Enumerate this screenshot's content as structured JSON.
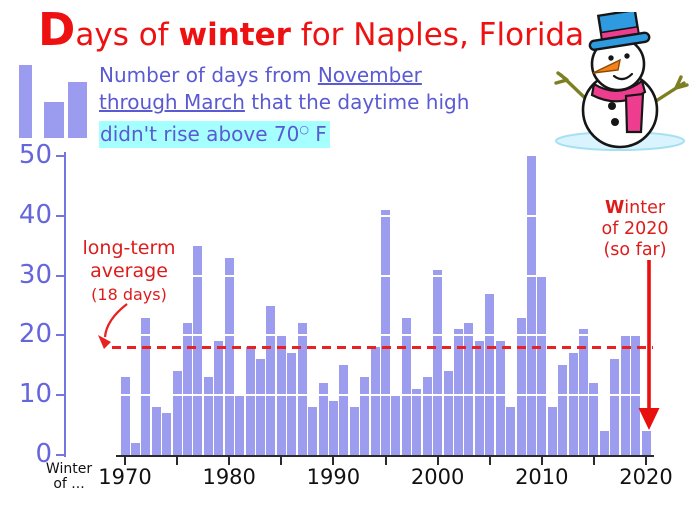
{
  "title": {
    "lead": "D",
    "part1": "ays of ",
    "part2": "winter",
    "part3": " for Naples, Florida"
  },
  "subtitle": {
    "line1_pre": "Number of days from ",
    "line1_underlined": "November",
    "line2_underlined": "through March",
    "line2_post": " that the daytime high",
    "line3_pre": "didn't rise above 70",
    "line3_degree": "○",
    "line3_post": " F"
  },
  "annotations": {
    "average": {
      "line1": "long-term",
      "line2": "average",
      "line3": "(18 days)"
    },
    "current": {
      "lead": "W",
      "line1_rest": "inter",
      "line2": "of 2020",
      "line3": "(so far)"
    }
  },
  "axis_corner_label": {
    "line1": "Winter",
    "line2": "of ..."
  },
  "colors": {
    "title_red": "#ee1111",
    "annotation_red": "#dd1c1c",
    "arrow_red": "#e80f0f",
    "dashed_line_red": "#e82222",
    "bar_fill": "#9d9df0",
    "y_axis_blue": "#7575e2",
    "y_label_blue": "#6666dc",
    "subtitle_blue": "#5a5ad2",
    "highlight_cyan": "#a6ffff",
    "x_axis_black": "#2a2a2a"
  },
  "chart_data": {
    "type": "bar",
    "title": "Days of winter for Naples, Florida",
    "description": "Number of days from November through March that the daytime high didn't rise above 70° F",
    "xlabel": "Winter of ...",
    "ylabel": "",
    "ylim": [
      0,
      50
    ],
    "y_ticks": [
      0,
      10,
      20,
      30,
      40,
      50
    ],
    "x_tick_labels": [
      "1970",
      "1980",
      "1990",
      "2000",
      "2010",
      "2020"
    ],
    "long_term_average": 18,
    "grid": "white gridlines at 10/20/30/40 drawn over bars",
    "legend": "none",
    "years": [
      1970,
      1971,
      1972,
      1973,
      1974,
      1975,
      1976,
      1977,
      1978,
      1979,
      1980,
      1981,
      1982,
      1983,
      1984,
      1985,
      1986,
      1987,
      1988,
      1989,
      1990,
      1991,
      1992,
      1993,
      1994,
      1995,
      1996,
      1997,
      1998,
      1999,
      2000,
      2001,
      2002,
      2003,
      2004,
      2005,
      2006,
      2007,
      2008,
      2009,
      2010,
      2011,
      2012,
      2013,
      2014,
      2015,
      2016,
      2017,
      2018,
      2019,
      2020
    ],
    "values": [
      13,
      2,
      23,
      8,
      7,
      14,
      22,
      35,
      13,
      19,
      33,
      10,
      18,
      16,
      25,
      20,
      17,
      22,
      8,
      12,
      9,
      15,
      8,
      13,
      18,
      41,
      10,
      23,
      11,
      13,
      31,
      14,
      21,
      22,
      19,
      27,
      19,
      8,
      23,
      50,
      30,
      8,
      15,
      17,
      21,
      12,
      4,
      16,
      20,
      20,
      4
    ]
  }
}
